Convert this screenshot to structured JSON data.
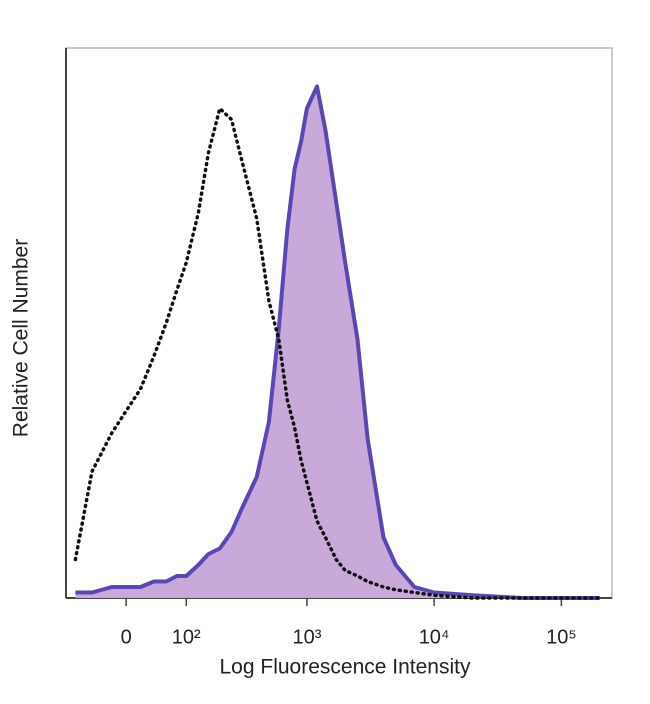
{
  "chart_data": {
    "type": "line",
    "x_label": "Log Fluorescence Intensity",
    "y_label": "Relative Cell Number",
    "xscale": "biexponential",
    "x": [
      -80,
      -50,
      -20,
      0,
      20,
      40,
      60,
      80,
      100,
      130,
      160,
      200,
      250,
      300,
      400,
      500,
      600,
      700,
      800,
      900,
      1000,
      1200,
      1400,
      1700,
      2000,
      2500,
      3000,
      4000,
      5000,
      7000,
      10000,
      20000,
      50000,
      100000,
      200000
    ],
    "series": [
      {
        "color": "#111111",
        "style": "dotted",
        "values": [
          7,
          23,
          30,
          34,
          38,
          44,
          50,
          56,
          61,
          70,
          81,
          89,
          87,
          80,
          69,
          54,
          47,
          36,
          31,
          25,
          21,
          14,
          11,
          7,
          5,
          4,
          3,
          2,
          1.5,
          1,
          0.5,
          0,
          0,
          0,
          0
        ]
      },
      {
        "color": "#5a47b3",
        "fill": "#c9a9d9",
        "style": "filled",
        "values": [
          1,
          1,
          2,
          2,
          2,
          3,
          3,
          4,
          4,
          6,
          8,
          9,
          12,
          16,
          22,
          32,
          49,
          67,
          78,
          83,
          89,
          93,
          85,
          72,
          61,
          47,
          29,
          11,
          6,
          2,
          1,
          0.5,
          0,
          0,
          0
        ]
      }
    ],
    "xlim": [
      -100,
      250000
    ],
    "xticks": [
      0,
      {
        "value": 100,
        "label": "10²"
      },
      {
        "value": 1000,
        "label": "10³"
      },
      {
        "value": 10000,
        "label": "10⁴"
      },
      {
        "value": 100000,
        "label": "10⁵"
      }
    ],
    "ylim": [
      0,
      100
    ]
  }
}
